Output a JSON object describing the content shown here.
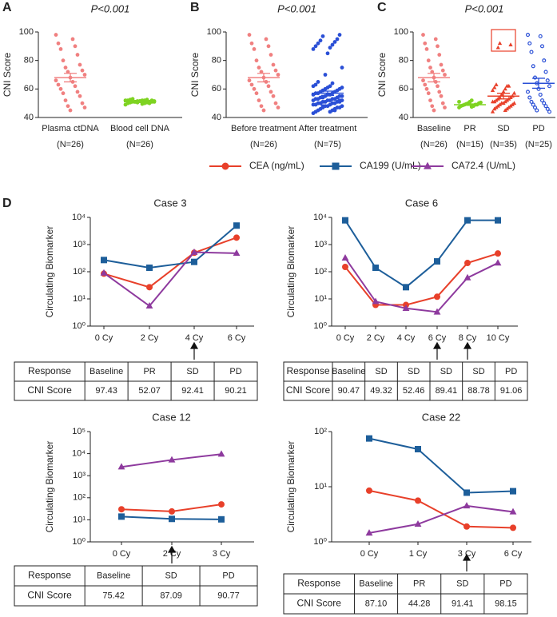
{
  "chart_data": [
    {
      "type": "dot",
      "label": "A",
      "title": "P<0.001",
      "ylabel": "CNI Score",
      "ylim": [
        40,
        100
      ],
      "yticks": [
        40,
        60,
        80,
        100
      ],
      "categories": [
        "Plasma ctDNA",
        "Blood cell DNA"
      ],
      "sublabels": [
        "(N=26)",
        "(N=26)"
      ],
      "groups": [
        {
          "color": "#f08080",
          "marker": "circle",
          "mean": 68,
          "sem": 3,
          "values": [
            98,
            95,
            92,
            90,
            88,
            84,
            80,
            77,
            75,
            73,
            72,
            70,
            68,
            66,
            65,
            63,
            62,
            60,
            58,
            57,
            55,
            52,
            50,
            48,
            47,
            45
          ]
        },
        {
          "color": "#7ed321",
          "marker": "circle",
          "mean": 51,
          "sem": 0.5,
          "values": [
            49,
            49.5,
            50,
            50,
            50.5,
            50.5,
            51,
            51,
            51,
            51,
            51.5,
            51.5,
            51.5,
            52,
            52,
            52,
            52,
            52.5,
            52.5,
            53,
            50,
            51,
            52,
            50.5,
            51,
            51.5
          ]
        }
      ]
    },
    {
      "type": "dot",
      "label": "B",
      "title": "P<0.001",
      "ylabel": "CNI Score",
      "ylim": [
        40,
        100
      ],
      "yticks": [
        40,
        60,
        80,
        100
      ],
      "categories": [
        "Before treatment",
        "After treatment"
      ],
      "sublabels": [
        "(N=26)",
        "(N=75)"
      ],
      "groups": [
        {
          "color": "#f08080",
          "marker": "circle",
          "mean": 68,
          "sem": 3,
          "values": [
            98,
            95,
            92,
            90,
            88,
            84,
            80,
            77,
            75,
            73,
            72,
            70,
            68,
            66,
            65,
            63,
            62,
            60,
            58,
            57,
            55,
            52,
            50,
            48,
            47,
            45
          ]
        },
        {
          "color": "#2a4fd6",
          "marker": "circle",
          "mean": 57,
          "sem": 1.5,
          "values": [
            43,
            44,
            44,
            45,
            45,
            46,
            46,
            47,
            47,
            47,
            48,
            48,
            48,
            49,
            49,
            49,
            50,
            50,
            50,
            50,
            51,
            51,
            51,
            51,
            52,
            52,
            52,
            52,
            53,
            53,
            53,
            53,
            54,
            54,
            54,
            55,
            55,
            55,
            56,
            56,
            56,
            57,
            57,
            57,
            58,
            58,
            59,
            59,
            60,
            60,
            61,
            61,
            62,
            62,
            63,
            64,
            65,
            45,
            50,
            54,
            48,
            52,
            70,
            75,
            85,
            88,
            89,
            90,
            91,
            92,
            93,
            94,
            95,
            97,
            98
          ]
        }
      ]
    },
    {
      "type": "dot",
      "label": "C",
      "title": "P<0.001",
      "ylabel": "CNI Score",
      "ylim": [
        40,
        100
      ],
      "yticks": [
        40,
        60,
        80,
        100
      ],
      "categories": [
        "Baseline",
        "PR",
        "SD",
        "PD"
      ],
      "sublabels": [
        "(N=26)",
        "(N=15)",
        "(N=35)",
        "(N=25)"
      ],
      "groups": [
        {
          "color": "#f08080",
          "marker": "circle",
          "mean": 68,
          "sem": 3,
          "values": [
            98,
            95,
            92,
            90,
            88,
            84,
            80,
            77,
            75,
            73,
            72,
            70,
            68,
            66,
            65,
            63,
            62,
            60,
            58,
            57,
            55,
            52,
            50,
            48,
            47,
            45
          ]
        },
        {
          "color": "#7ed321",
          "marker": "circle",
          "mean": 49,
          "sem": 0.5,
          "values": [
            47,
            47.5,
            48,
            48,
            48.5,
            49,
            49,
            49,
            49.5,
            50,
            50,
            50.5,
            51,
            51,
            52
          ]
        },
        {
          "color": "#e8402a",
          "marker": "triangle",
          "mean": 55,
          "sem": 2,
          "values": [
            44,
            45,
            46,
            46,
            47,
            47,
            48,
            48,
            49,
            49,
            50,
            50,
            50,
            51,
            51,
            51,
            52,
            52,
            53,
            53,
            54,
            54,
            55,
            56,
            57,
            58,
            59,
            60,
            61,
            62,
            63,
            62,
            89,
            91,
            92
          ]
        },
        {
          "color": "#2a4fd6",
          "marker": "open-circle",
          "mean": 64,
          "sem": 3.5,
          "values": [
            98,
            97,
            92,
            90,
            86,
            80,
            76,
            72,
            68,
            66,
            64,
            62,
            60,
            58,
            56,
            54,
            52,
            51,
            50,
            49,
            48,
            47,
            46,
            45,
            44
          ]
        }
      ]
    },
    {
      "type": "line",
      "label": "D",
      "title": "Case 3",
      "ylabel": "Circulating Biomarker",
      "log_y": true,
      "ylim": [
        1,
        10000
      ],
      "yticks": [
        {
          "value": 1,
          "label": "10⁰"
        },
        {
          "value": 10,
          "label": "10¹"
        },
        {
          "value": 100,
          "label": "10²"
        },
        {
          "value": 1000,
          "label": "10³"
        },
        {
          "value": 10000,
          "label": "10⁴"
        }
      ],
      "categories": [
        "0 Cy",
        "2 Cy",
        "4 Cy",
        "6 Cy"
      ],
      "arrows": [
        2
      ],
      "series": [
        {
          "color": "#e8402a",
          "marker": "circle",
          "values": [
            85,
            27,
            500,
            1800
          ]
        },
        {
          "color": "#1d5e9a",
          "marker": "square",
          "values": [
            270,
            140,
            230,
            5000
          ]
        },
        {
          "color": "#8e3a9e",
          "marker": "triangle",
          "values": [
            90,
            5.5,
            520,
            480
          ]
        }
      ],
      "table": [
        [
          "Response",
          "Baseline",
          "PR",
          "SD",
          "PD"
        ],
        [
          "CNI Score",
          "97.43",
          "52.07",
          "92.41",
          "90.21"
        ]
      ]
    },
    {
      "type": "line",
      "title": "Case 6",
      "ylabel": "Circulating Biomarker",
      "log_y": true,
      "ylim": [
        1,
        10000
      ],
      "yticks": [
        {
          "value": 1,
          "label": "10⁰"
        },
        {
          "value": 10,
          "label": "10¹"
        },
        {
          "value": 100,
          "label": "10²"
        },
        {
          "value": 1000,
          "label": "10³"
        },
        {
          "value": 10000,
          "label": "10⁴"
        }
      ],
      "categories": [
        "0 Cy",
        "2 Cy",
        "4 Cy",
        "6 Cy",
        "8 Cy",
        "10 Cy"
      ],
      "arrows": [
        3,
        4
      ],
      "series": [
        {
          "color": "#e8402a",
          "marker": "circle",
          "values": [
            150,
            6,
            6,
            12,
            210,
            470
          ]
        },
        {
          "color": "#1d5e9a",
          "marker": "square",
          "values": [
            7800,
            140,
            27,
            240,
            7800,
            7800
          ]
        },
        {
          "color": "#8e3a9e",
          "marker": "triangle",
          "values": [
            320,
            8,
            4.5,
            3.3,
            60,
            210
          ]
        }
      ],
      "table": [
        [
          "Response",
          "Baseline",
          "SD",
          "SD",
          "SD",
          "SD",
          "PD"
        ],
        [
          "CNI Score",
          "90.47",
          "49.32",
          "52.46",
          "89.41",
          "88.78",
          "91.06"
        ]
      ]
    },
    {
      "type": "line",
      "title": "Case 12",
      "ylabel": "Circulating Biomarker",
      "log_y": true,
      "ylim": [
        1,
        100000
      ],
      "yticks": [
        {
          "value": 1,
          "label": "10⁰"
        },
        {
          "value": 10,
          "label": "10¹"
        },
        {
          "value": 100,
          "label": "10²"
        },
        {
          "value": 1000,
          "label": "10³"
        },
        {
          "value": 10000,
          "label": "10⁴"
        },
        {
          "value": 100000,
          "label": "10⁵"
        }
      ],
      "categories": [
        "0 Cy",
        "2 Cy",
        "3 Cy"
      ],
      "arrows": [
        1
      ],
      "series": [
        {
          "color": "#e8402a",
          "marker": "circle",
          "values": [
            30,
            24,
            50
          ]
        },
        {
          "color": "#1d5e9a",
          "marker": "square",
          "values": [
            14,
            11,
            10.5
          ]
        },
        {
          "color": "#8e3a9e",
          "marker": "triangle",
          "values": [
            2500,
            5200,
            9500
          ]
        }
      ],
      "table": [
        [
          "Response",
          "Baseline",
          "SD",
          "PD"
        ],
        [
          "CNI Score",
          "75.42",
          "87.09",
          "90.77"
        ]
      ]
    },
    {
      "type": "line",
      "title": "Case 22",
      "ylabel": "Circulating Biomarker",
      "log_y": true,
      "ylim": [
        1,
        100
      ],
      "yticks": [
        {
          "value": 1,
          "label": "10⁰"
        },
        {
          "value": 10,
          "label": "10¹"
        },
        {
          "value": 100,
          "label": "10²"
        }
      ],
      "categories": [
        "0 Cy",
        "1 Cy",
        "3 Cy",
        "6 Cy"
      ],
      "arrows": [
        2
      ],
      "series": [
        {
          "color": "#e8402a",
          "marker": "circle",
          "values": [
            8.5,
            5.6,
            1.9,
            1.8
          ]
        },
        {
          "color": "#1d5e9a",
          "marker": "square",
          "values": [
            75,
            48,
            7.8,
            8.3
          ]
        },
        {
          "color": "#8e3a9e",
          "marker": "triangle",
          "values": [
            1.45,
            2.1,
            4.5,
            3.5
          ]
        }
      ],
      "table": [
        [
          "Response",
          "Baseline",
          "PR",
          "SD",
          "PD"
        ],
        [
          "CNI Score",
          "87.10",
          "44.28",
          "91.41",
          "98.15"
        ]
      ]
    }
  ],
  "legend": [
    {
      "name": "CEA (ng/mL)",
      "color": "#e8402a",
      "marker": "circle"
    },
    {
      "name": "CA199 (U/mL)",
      "color": "#1d5e9a",
      "marker": "square"
    },
    {
      "name": "CA72.4 (U/mL)",
      "color": "#8e3a9e",
      "marker": "triangle"
    }
  ]
}
